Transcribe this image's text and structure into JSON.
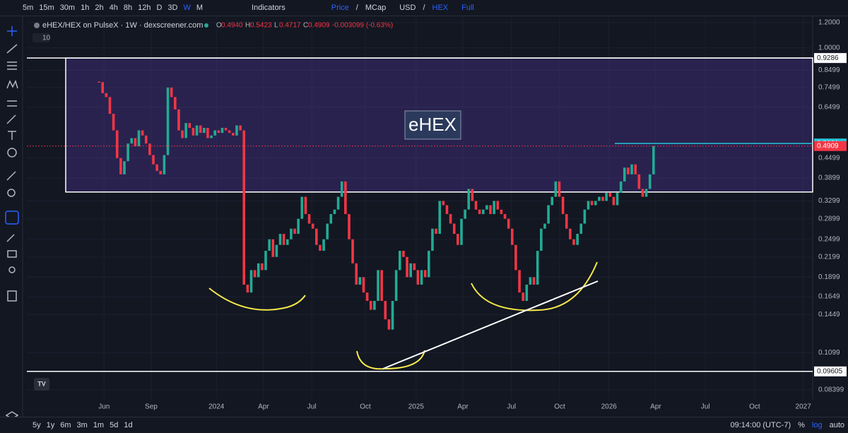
{
  "toolbar": {
    "intervals": [
      "5m",
      "15m",
      "30m",
      "1h",
      "2h",
      "4h",
      "8h",
      "12h",
      "D",
      "3D",
      "W",
      "M"
    ],
    "indicators": "Indicators",
    "price": "Price",
    "slash1": "/",
    "mcap": "MCap",
    "usd": "USD",
    "slash2": "/",
    "hex": "HEX",
    "full": "Full"
  },
  "footer": {
    "ranges": [
      "5y",
      "1y",
      "6m",
      "3m",
      "1m",
      "5d",
      "1d"
    ],
    "time": "09:14:00 (UTC-7)",
    "percent": "%",
    "log": "log",
    "auto": "auto"
  },
  "chart_data": {
    "type": "candlestick",
    "title": "eHEX/HEX on PulseX · 1W · dexscreener.com",
    "ohlc": [
      {
        "key": "O",
        "value": "0.4940"
      },
      {
        "key": "H",
        "value": "0.5423"
      },
      {
        "key": "L",
        "value": "0.4717"
      },
      {
        "key": "C",
        "value": "0.4909"
      }
    ],
    "change": "-0.003099 (-0.63%)",
    "indicator_count": "10",
    "annotation": "eHEX",
    "log_scale": true,
    "up_color": "#22ab94",
    "down_color": "#f23645",
    "close": [
      0.78,
      0.72,
      0.7,
      0.62,
      0.55,
      0.45,
      0.4,
      0.44,
      0.5,
      0.52,
      0.49,
      0.55,
      0.53,
      0.5,
      0.46,
      0.43,
      0.41,
      0.4,
      0.46,
      0.75,
      0.7,
      0.64,
      0.55,
      0.52,
      0.58,
      0.56,
      0.53,
      0.57,
      0.54,
      0.56,
      0.52,
      0.53,
      0.55,
      0.54,
      0.56,
      0.55,
      0.54,
      0.53,
      0.57,
      0.55,
      0.18,
      0.17,
      0.2,
      0.19,
      0.21,
      0.2,
      0.23,
      0.25,
      0.22,
      0.24,
      0.26,
      0.24,
      0.25,
      0.27,
      0.26,
      0.29,
      0.34,
      0.3,
      0.28,
      0.27,
      0.24,
      0.23,
      0.25,
      0.28,
      0.3,
      0.31,
      0.34,
      0.38,
      0.3,
      0.25,
      0.21,
      0.18,
      0.19,
      0.17,
      0.16,
      0.15,
      0.16,
      0.2,
      0.16,
      0.14,
      0.13,
      0.16,
      0.2,
      0.23,
      0.22,
      0.19,
      0.21,
      0.2,
      0.18,
      0.2,
      0.19,
      0.23,
      0.27,
      0.26,
      0.33,
      0.32,
      0.3,
      0.28,
      0.26,
      0.24,
      0.29,
      0.31,
      0.36,
      0.33,
      0.31,
      0.3,
      0.31,
      0.32,
      0.3,
      0.33,
      0.31,
      0.3,
      0.29,
      0.27,
      0.24,
      0.2,
      0.17,
      0.16,
      0.18,
      0.19,
      0.18,
      0.23,
      0.27,
      0.28,
      0.32,
      0.34,
      0.38,
      0.34,
      0.3,
      0.27,
      0.25,
      0.24,
      0.26,
      0.28,
      0.31,
      0.33,
      0.32,
      0.33,
      0.34,
      0.33,
      0.35,
      0.34,
      0.32,
      0.35,
      0.38,
      0.42,
      0.4,
      0.43,
      0.4,
      0.36,
      0.34,
      0.36,
      0.4,
      0.4909
    ],
    "xlim": [
      -19.9,
      196.9
    ],
    "xticks": [
      {
        "value": 1.4,
        "label": "Jun"
      },
      {
        "value": 14.4,
        "label": "Sep"
      },
      {
        "value": 32.4,
        "label": "2024"
      },
      {
        "value": 45.4,
        "label": "Apr"
      },
      {
        "value": 58.7,
        "label": "Jul"
      },
      {
        "value": 73.5,
        "label": "Oct"
      },
      {
        "value": 87.5,
        "label": "2025"
      },
      {
        "value": 100.4,
        "label": "Apr"
      },
      {
        "value": 113.8,
        "label": "Jul"
      },
      {
        "value": 127.1,
        "label": "Oct"
      },
      {
        "value": 140.7,
        "label": "2026"
      },
      {
        "value": 153.6,
        "label": "Apr"
      },
      {
        "value": 167.3,
        "label": "Jul"
      },
      {
        "value": 180.9,
        "label": "Oct"
      },
      {
        "value": 194.3,
        "label": "2027"
      }
    ],
    "ylim": [
      0.0786,
      1.263
    ],
    "yticks": [
      {
        "value": 1.2,
        "label": "1.2000"
      },
      {
        "value": 1.0,
        "label": "1.0000"
      },
      {
        "value": 0.8499,
        "label": "0.8499"
      },
      {
        "value": 0.7499,
        "label": "0.7499"
      },
      {
        "value": 0.6499,
        "label": "0.6499"
      },
      {
        "value": 0.4499,
        "label": "0.4499"
      },
      {
        "value": 0.3899,
        "label": "0.3899"
      },
      {
        "value": 0.3299,
        "label": "0.3299"
      },
      {
        "value": 0.2899,
        "label": "0.2899"
      },
      {
        "value": 0.2499,
        "label": "0.2499"
      },
      {
        "value": 0.2199,
        "label": "0.2199"
      },
      {
        "value": 0.1899,
        "label": "0.1899"
      },
      {
        "value": 0.1649,
        "label": "0.1649"
      },
      {
        "value": 0.1449,
        "label": "0.1449"
      },
      {
        "value": 0.1099,
        "label": "0.1099"
      },
      {
        "value": 0.08399,
        "label": "0.08399"
      }
    ],
    "range_box": {
      "low": 0.352,
      "high": 0.9286
    },
    "levels": [
      {
        "value": 0.9286,
        "color": "#ffffff"
      },
      {
        "value": 0.5001,
        "color": "#26c6da"
      },
      {
        "value": 0.4909,
        "color": "#f23645"
      },
      {
        "value": 0.09605,
        "color": "#ffffff"
      }
    ]
  }
}
